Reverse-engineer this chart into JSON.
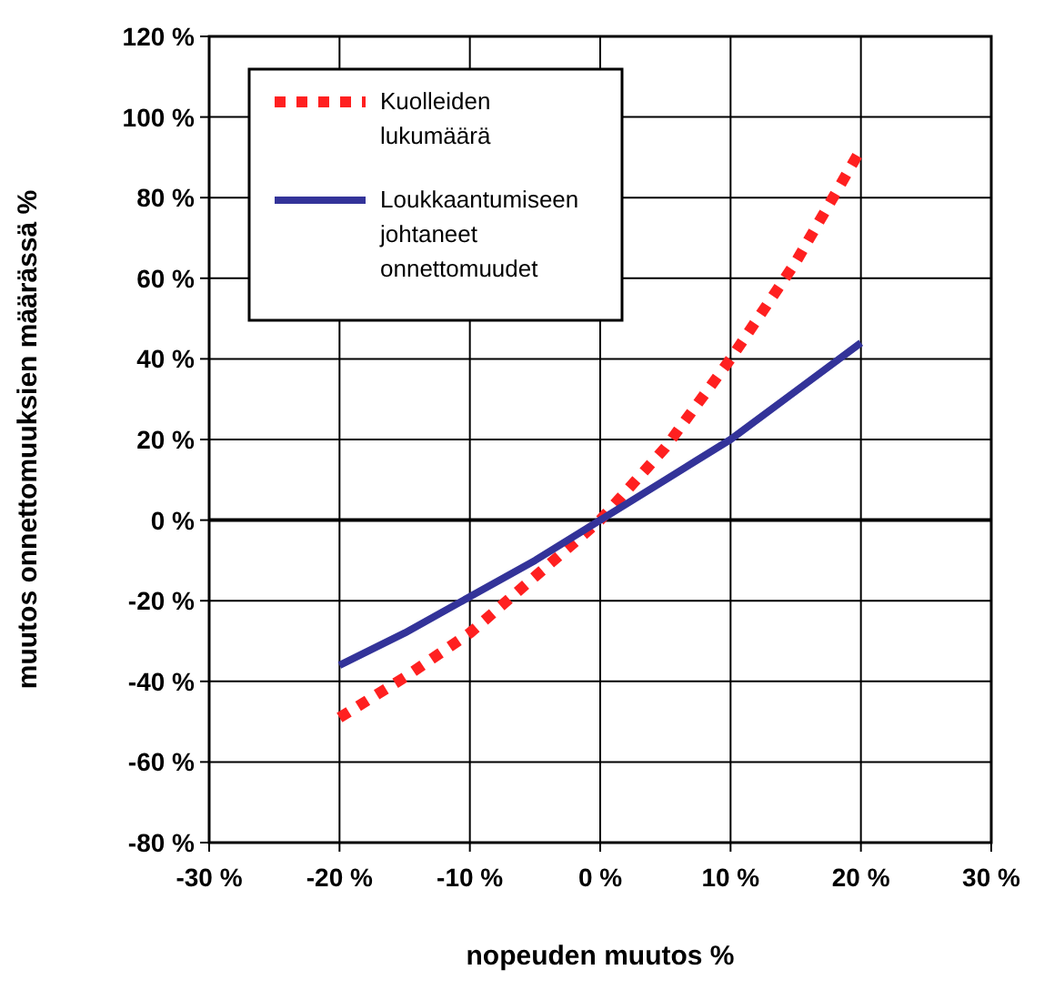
{
  "chart_data": {
    "type": "line",
    "xlabel": "nopeuden muutos %",
    "ylabel": "muutos onnettomuuksien määrässä %",
    "x": [
      -20,
      -15,
      -10,
      -5,
      0,
      5,
      10,
      15,
      20
    ],
    "series": [
      {
        "name": "Kuolleiden lukumäärä",
        "color": "#ff2020",
        "line_style": "dotted",
        "values": [
          -49,
          -39,
          -28,
          -14,
          0,
          18,
          40,
          64,
          92
        ]
      },
      {
        "name": "Loukkaantumiseen johtaneet onnettomuudet",
        "color": "#333399",
        "line_style": "solid",
        "values": [
          -36,
          -28,
          -19,
          -10,
          0,
          10,
          20,
          32,
          44
        ]
      }
    ],
    "xlim": [
      -30,
      30
    ],
    "xticks": [
      {
        "value": -30,
        "label": "-30 %"
      },
      {
        "value": -20,
        "label": "-20 %"
      },
      {
        "value": -10,
        "label": "-10 %"
      },
      {
        "value": 0,
        "label": "0 %"
      },
      {
        "value": 10,
        "label": "10 %"
      },
      {
        "value": 20,
        "label": "20 %"
      },
      {
        "value": 30,
        "label": "30 %"
      }
    ],
    "ylim": [
      -80,
      120
    ],
    "yticks": [
      {
        "value": -80,
        "label": "-80 %"
      },
      {
        "value": -60,
        "label": "-60 %"
      },
      {
        "value": -40,
        "label": "-40 %"
      },
      {
        "value": -20,
        "label": "-20 %"
      },
      {
        "value": 0,
        "label": "0 %"
      },
      {
        "value": 20,
        "label": "20 %"
      },
      {
        "value": 40,
        "label": "40 %"
      },
      {
        "value": 60,
        "label": "60 %"
      },
      {
        "value": 80,
        "label": "80 %"
      },
      {
        "value": 100,
        "label": "100 %"
      },
      {
        "value": 120,
        "label": "120 %"
      }
    ],
    "grid": true,
    "legend": "top left",
    "marker": "none"
  }
}
